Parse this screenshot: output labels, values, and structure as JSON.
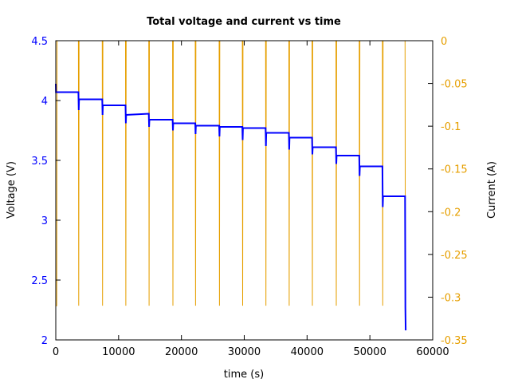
{
  "chart_data": {
    "type": "line",
    "title": "Total voltage and current vs time",
    "xlabel": "time (s)",
    "ylabel_left": "Voltage (V)",
    "ylabel_right": "Current (A)",
    "xlim": [
      0,
      60000
    ],
    "ylim_left": [
      2,
      4.5
    ],
    "ylim_right": [
      -0.35,
      0
    ],
    "x_ticks": [
      "0",
      "10000",
      "20000",
      "30000",
      "40000",
      "50000",
      "60000"
    ],
    "y_left_ticks": [
      "2",
      "2.5",
      "3",
      "3.5",
      "4",
      "4.5"
    ],
    "y_right_ticks": [
      "-0.35",
      "-0.3",
      "-0.25",
      "-0.2",
      "-0.15",
      "-0.1",
      "-0.05",
      "0"
    ],
    "colors": {
      "voltage": "#0000ff",
      "current": "#e69f00",
      "axis": "#000000"
    },
    "series": [
      {
        "axis": "left",
        "x": [
          0,
          30,
          200,
          3600,
          3650,
          3700,
          7400,
          7450,
          7500,
          11100,
          11150,
          11200,
          14800,
          14850,
          14900,
          18600,
          18650,
          18700,
          22200,
          22250,
          22300,
          26000,
          26050,
          26100,
          29700,
          29750,
          29800,
          33400,
          33450,
          33500,
          37100,
          37150,
          37200,
          40800,
          40850,
          40900,
          44600,
          44650,
          44700,
          48300,
          48350,
          48400,
          52000,
          52050,
          52100,
          55600,
          55650,
          55700
        ],
        "values": [
          4.14,
          4.07,
          4.07,
          4.07,
          3.92,
          4.01,
          4.01,
          3.88,
          3.96,
          3.96,
          3.81,
          3.88,
          3.89,
          3.78,
          3.84,
          3.84,
          3.75,
          3.81,
          3.81,
          3.72,
          3.79,
          3.79,
          3.7,
          3.78,
          3.78,
          3.67,
          3.77,
          3.77,
          3.62,
          3.73,
          3.73,
          3.59,
          3.69,
          3.69,
          3.55,
          3.61,
          3.61,
          3.47,
          3.54,
          3.54,
          3.37,
          3.45,
          3.45,
          3.11,
          3.2,
          3.2,
          2.27,
          2.08
        ]
      },
      {
        "axis": "right",
        "x": [
          0,
          150,
          200,
          3600,
          3650,
          3700,
          7400,
          7450,
          7500,
          11100,
          11150,
          11200,
          14800,
          14850,
          14900,
          18600,
          18650,
          18700,
          22200,
          22250,
          22300,
          26000,
          26050,
          26100,
          29700,
          29750,
          29800,
          33400,
          33450,
          33500,
          37100,
          37150,
          37200,
          40800,
          40850,
          40900,
          44600,
          44650,
          44700,
          48300,
          48350,
          48400,
          52000,
          52050,
          52100,
          55600,
          55650
        ],
        "values": [
          -0.31,
          -0.31,
          0,
          0,
          -0.31,
          0,
          0,
          -0.31,
          0,
          0,
          -0.31,
          0,
          0,
          -0.31,
          0,
          0,
          -0.31,
          0,
          0,
          -0.31,
          0,
          0,
          -0.31,
          0,
          0,
          -0.31,
          0,
          0,
          -0.31,
          0,
          0,
          -0.31,
          0,
          0,
          -0.31,
          0,
          0,
          -0.31,
          0,
          0,
          -0.31,
          0,
          0,
          -0.31,
          0,
          0,
          -0.31
        ]
      }
    ]
  }
}
